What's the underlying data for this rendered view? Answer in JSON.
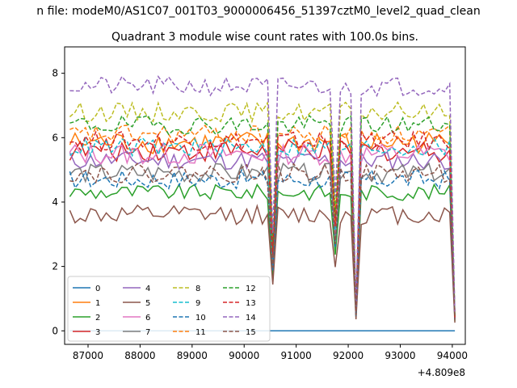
{
  "chart_data": {
    "type": "line",
    "suptitle": "n file: modeM0/AS1C07_001T03_9000006456_51397cztM0_level2_quad_clean",
    "title": "Quadrant 3 module wise count rates with 100.0s bins.",
    "xlabel": "",
    "ylabel": "",
    "x_offset_label": "+4.809e8",
    "xlim": [
      86550,
      94250
    ],
    "ylim": [
      -0.42,
      8.82
    ],
    "x_ticks": [
      87000,
      88000,
      89000,
      90000,
      91000,
      92000,
      93000,
      94000
    ],
    "x_tick_labels": [
      "87000",
      "88000",
      "89000",
      "90000",
      "91000",
      "92000",
      "93000",
      "94000"
    ],
    "y_ticks": [
      0,
      2,
      4,
      6,
      8
    ],
    "y_tick_labels": [
      "0",
      "2",
      "4",
      "6",
      "8"
    ],
    "grid": false,
    "legend_position": "lower-left",
    "x_range": [
      86650,
      94050
    ],
    "bin_seconds": 100,
    "series": [
      {
        "name": "0",
        "color": "#1f77b4",
        "dashed": false,
        "base": 0.0,
        "noise": 0.0
      },
      {
        "name": "1",
        "color": "#ff7f0e",
        "dashed": false,
        "base": 5.85,
        "noise": 0.35
      },
      {
        "name": "2",
        "color": "#2ca02c",
        "dashed": false,
        "base": 4.3,
        "noise": 0.25
      },
      {
        "name": "3",
        "color": "#d62728",
        "dashed": false,
        "base": 5.6,
        "noise": 0.35
      },
      {
        "name": "4",
        "color": "#9467bd",
        "dashed": false,
        "base": 5.3,
        "noise": 0.3
      },
      {
        "name": "5",
        "color": "#8c564b",
        "dashed": false,
        "base": 3.6,
        "noise": 0.3
      },
      {
        "name": "6",
        "color": "#e377c2",
        "dashed": false,
        "base": 5.5,
        "noise": 0.35
      },
      {
        "name": "7",
        "color": "#7f7f7f",
        "dashed": false,
        "base": 4.9,
        "noise": 0.3
      },
      {
        "name": "8",
        "color": "#bcbd22",
        "dashed": true,
        "base": 6.8,
        "noise": 0.3
      },
      {
        "name": "9",
        "color": "#17becf",
        "dashed": true,
        "base": 5.7,
        "noise": 0.3
      },
      {
        "name": "10",
        "color": "#1f77b4",
        "dashed": true,
        "base": 4.7,
        "noise": 0.3
      },
      {
        "name": "11",
        "color": "#ff7f0e",
        "dashed": true,
        "base": 6.1,
        "noise": 0.3
      },
      {
        "name": "12",
        "color": "#2ca02c",
        "dashed": true,
        "base": 6.4,
        "noise": 0.3
      },
      {
        "name": "13",
        "color": "#d62728",
        "dashed": true,
        "base": 5.9,
        "noise": 0.3
      },
      {
        "name": "14",
        "color": "#9467bd",
        "dashed": true,
        "base": 7.6,
        "noise": 0.3
      },
      {
        "name": "15",
        "color": "#8c564b",
        "dashed": true,
        "base": 4.9,
        "noise": 0.3
      }
    ],
    "dips": [
      {
        "x": 90550,
        "factor": 0.4
      },
      {
        "x": 91750,
        "factor": 0.55
      },
      {
        "x": 92150,
        "factor": 0.1
      },
      {
        "x": 94050,
        "factor": 0.07
      }
    ]
  }
}
